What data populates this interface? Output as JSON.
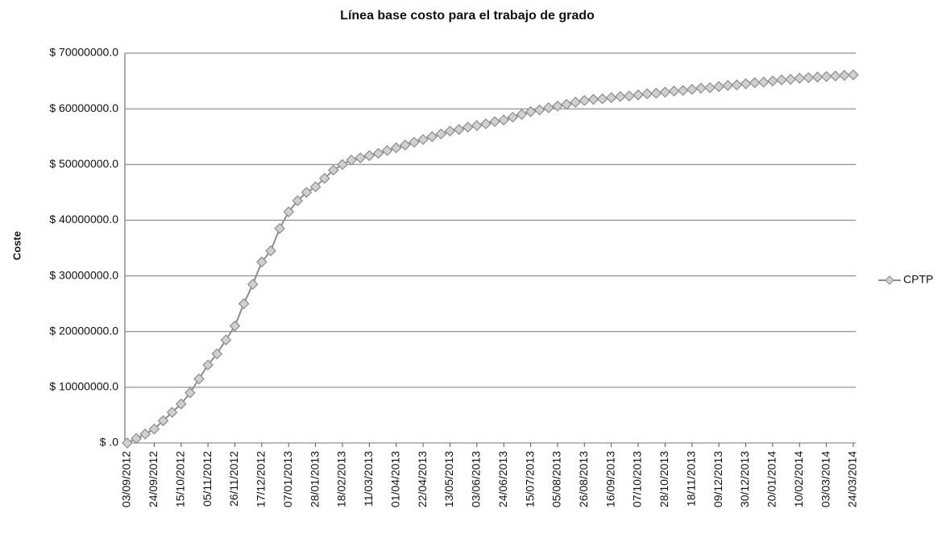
{
  "chart_data": {
    "type": "line",
    "title": "Línea base costo para el trabajo de grado",
    "y_label": "Coste",
    "categories": [
      "03/09/2012",
      null,
      null,
      "24/09/2012",
      null,
      null,
      "15/10/2012",
      null,
      null,
      "05/11/2012",
      null,
      null,
      "26/11/2012",
      null,
      null,
      "17/12/2012",
      null,
      null,
      "07/01/2013",
      null,
      null,
      "28/01/2013",
      null,
      null,
      "18/02/2013",
      null,
      null,
      "11/03/2013",
      null,
      null,
      "01/04/2013",
      null,
      null,
      "22/04/2013",
      null,
      null,
      "13/05/2013",
      null,
      null,
      "03/06/2013",
      null,
      null,
      "24/06/2013",
      null,
      null,
      "15/07/2013",
      null,
      null,
      "05/08/2013",
      null,
      null,
      "26/08/2013",
      null,
      null,
      "16/09/2013",
      null,
      null,
      "07/10/2013",
      null,
      null,
      "28/10/2013",
      null,
      null,
      "18/11/2013",
      null,
      null,
      "09/12/2013",
      null,
      null,
      "30/12/2013",
      null,
      null,
      "20/01/2014",
      null,
      null,
      "10/02/2014",
      null,
      null,
      "03/03/2014",
      null,
      null,
      "24/03/2014"
    ],
    "series": [
      {
        "name": "CPTP",
        "color": "#8c8c8c",
        "values": [
          0,
          800000,
          1600000,
          2500000,
          4000000,
          5500000,
          7000000,
          9000000,
          11500000,
          14000000,
          16000000,
          18500000,
          21000000,
          25000000,
          28500000,
          32500000,
          34500000,
          38500000,
          41500000,
          43500000,
          45000000,
          46000000,
          47500000,
          49000000,
          50000000,
          50800000,
          51200000,
          51600000,
          52000000,
          52500000,
          53000000,
          53500000,
          54000000,
          54500000,
          55000000,
          55500000,
          56000000,
          56300000,
          56700000,
          57000000,
          57300000,
          57700000,
          58000000,
          58500000,
          59000000,
          59500000,
          59800000,
          60200000,
          60500000,
          60800000,
          61200000,
          61500000,
          61700000,
          61800000,
          62000000,
          62200000,
          62300000,
          62500000,
          62700000,
          62800000,
          63000000,
          63200000,
          63300000,
          63500000,
          63700000,
          63800000,
          64000000,
          64200000,
          64300000,
          64500000,
          64700000,
          64800000,
          65000000,
          65200000,
          65300000,
          65500000,
          65600000,
          65700000,
          65800000,
          65900000,
          66000000,
          66100000
        ]
      }
    ],
    "ylim": [
      0,
      70000000
    ],
    "yticks": [
      {
        "value": 0,
        "label": "$ .0"
      },
      {
        "value": 10000000,
        "label": "$ 10000000.0"
      },
      {
        "value": 20000000,
        "label": "$ 20000000.0"
      },
      {
        "value": 30000000,
        "label": "$ 30000000.0"
      },
      {
        "value": 40000000,
        "label": "$ 40000000.0"
      },
      {
        "value": 50000000,
        "label": "$ 50000000.0"
      },
      {
        "value": 60000000,
        "label": "$ 60000000.0"
      },
      {
        "value": 70000000,
        "label": "$ 70000000.0"
      }
    ],
    "grid": true,
    "legend": "right"
  }
}
